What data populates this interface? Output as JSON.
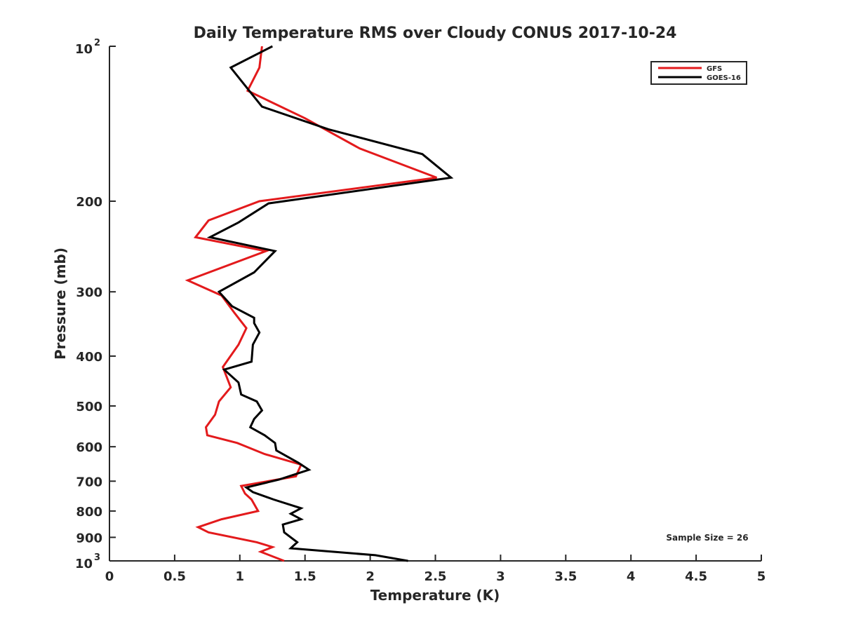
{
  "chart_data": {
    "type": "line",
    "title": "Daily Temperature RMS over Cloudy CONUS 2017-10-24",
    "xlabel": "Temperature (K)",
    "ylabel": "Pressure (mb)",
    "xlim": [
      0,
      5
    ],
    "ylim": [
      100,
      1000
    ],
    "y_scale": "log",
    "y_reversed": true,
    "grid": false,
    "legend_position": "top-right",
    "x_ticks": [
      "0",
      "0.5",
      "1",
      "1.5",
      "2",
      "2.5",
      "3",
      "3.5",
      "4",
      "4.5",
      "5"
    ],
    "y_ticks": [
      {
        "value": 100,
        "base": "10",
        "exp": "2"
      },
      {
        "value": 200,
        "label": "200"
      },
      {
        "value": 300,
        "label": "300"
      },
      {
        "value": 400,
        "label": "400"
      },
      {
        "value": 500,
        "label": "500"
      },
      {
        "value": 600,
        "label": "600"
      },
      {
        "value": 700,
        "label": "700"
      },
      {
        "value": 800,
        "label": "800"
      },
      {
        "value": 900,
        "label": "900"
      },
      {
        "value": 1000,
        "base": "10",
        "exp": "3"
      }
    ],
    "series": [
      {
        "name": "GFS",
        "color": "#e31a1c",
        "x": [
          1.17,
          1.15,
          1.06,
          1.5,
          1.92,
          2.51,
          1.15,
          0.76,
          0.66,
          1.2,
          0.6,
          0.86,
          0.96,
          1.05,
          0.99,
          0.87,
          0.93,
          0.84,
          0.81,
          0.74,
          0.75,
          0.98,
          1.19,
          1.47,
          1.43,
          1.01,
          1.04,
          1.09,
          1.14,
          0.86,
          0.68,
          0.76,
          1.13,
          1.25,
          1.16,
          1.34
        ],
        "y": [
          100,
          110,
          122,
          138,
          158,
          180,
          200,
          218,
          235,
          250,
          285,
          305,
          330,
          353,
          380,
          420,
          460,
          490,
          520,
          550,
          570,
          590,
          620,
          650,
          685,
          715,
          740,
          760,
          800,
          830,
          860,
          880,
          920,
          940,
          960,
          1000
        ]
      },
      {
        "name": "GOES-16",
        "color": "#000000",
        "x": [
          1.25,
          0.93,
          1.17,
          1.68,
          2.4,
          2.62,
          1.22,
          0.99,
          0.77,
          1.27,
          1.11,
          0.84,
          0.94,
          1.11,
          1.11,
          1.15,
          1.1,
          1.09,
          0.88,
          0.99,
          1.01,
          1.13,
          1.17,
          1.11,
          1.08,
          1.19,
          1.27,
          1.28,
          1.45,
          1.53,
          1.3,
          1.05,
          1.1,
          1.26,
          1.47,
          1.39,
          1.47,
          1.33,
          1.34,
          1.44,
          1.39,
          2.04,
          2.29
        ],
        "y": [
          100,
          110,
          131,
          145,
          162,
          180,
          202,
          220,
          235,
          250,
          275,
          300,
          320,
          337,
          345,
          360,
          380,
          410,
          425,
          450,
          475,
          490,
          510,
          530,
          550,
          570,
          590,
          610,
          645,
          665,
          695,
          720,
          735,
          760,
          790,
          810,
          830,
          850,
          880,
          920,
          945,
          975,
          1000
        ]
      }
    ],
    "annotation": "Sample Size = 26"
  }
}
